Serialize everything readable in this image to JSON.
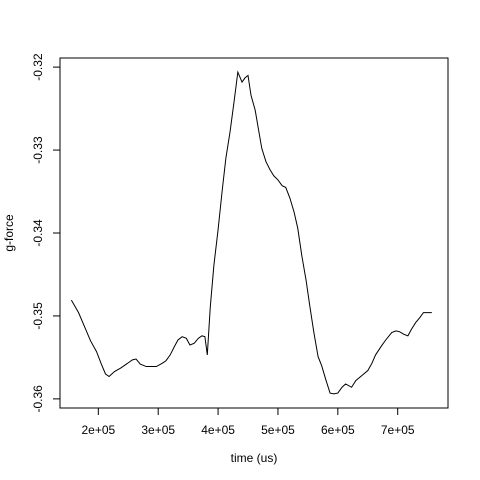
{
  "chart_data": {
    "type": "line",
    "xlabel": "time (us)",
    "ylabel": "g-force",
    "color": "#000000",
    "x": [
      155000,
      167000,
      177000,
      187000,
      197000,
      205000,
      212000,
      218000,
      227000,
      237000,
      247000,
      257000,
      263000,
      270000,
      280000,
      290000,
      297000,
      307000,
      313000,
      320000,
      327000,
      333000,
      340000,
      347000,
      353000,
      360000,
      367000,
      373000,
      378000,
      382000,
      387000,
      393000,
      400000,
      407000,
      413000,
      420000,
      427000,
      433000,
      440000,
      445000,
      450000,
      455000,
      462000,
      467000,
      473000,
      480000,
      487000,
      493000,
      500000,
      507000,
      513000,
      520000,
      527000,
      533000,
      540000,
      547000,
      553000,
      560000,
      567000,
      573000,
      580000,
      587000,
      593000,
      600000,
      607000,
      613000,
      623000,
      630000,
      640000,
      650000,
      657000,
      663000,
      673000,
      680000,
      690000,
      697000,
      703000,
      710000,
      717000,
      723000,
      730000,
      737000,
      743000,
      757000
    ],
    "values": [
      -0.3481,
      -0.3496,
      -0.3513,
      -0.353,
      -0.3543,
      -0.3558,
      -0.357,
      -0.3573,
      -0.3567,
      -0.3563,
      -0.3558,
      -0.3553,
      -0.3552,
      -0.3558,
      -0.3561,
      -0.3561,
      -0.3561,
      -0.3557,
      -0.3554,
      -0.3547,
      -0.3537,
      -0.3529,
      -0.3525,
      -0.3527,
      -0.3535,
      -0.3533,
      -0.3527,
      -0.3524,
      -0.3525,
      -0.3547,
      -0.3489,
      -0.3439,
      -0.3396,
      -0.3348,
      -0.331,
      -0.3278,
      -0.324,
      -0.3206,
      -0.3218,
      -0.3213,
      -0.321,
      -0.3234,
      -0.3252,
      -0.3273,
      -0.3298,
      -0.3314,
      -0.3324,
      -0.3331,
      -0.3336,
      -0.3343,
      -0.3345,
      -0.3358,
      -0.3375,
      -0.3394,
      -0.3428,
      -0.3457,
      -0.3487,
      -0.352,
      -0.3549,
      -0.356,
      -0.3577,
      -0.3593,
      -0.3594,
      -0.3593,
      -0.3586,
      -0.3582,
      -0.3586,
      -0.3578,
      -0.3572,
      -0.3566,
      -0.3557,
      -0.3547,
      -0.3536,
      -0.3529,
      -0.352,
      -0.3518,
      -0.3519,
      -0.3522,
      -0.3524,
      -0.3516,
      -0.3508,
      -0.3502,
      -0.3496,
      -0.3496
    ],
    "xlim": [
      136000,
      784000
    ],
    "xticks": [
      {
        "value": 200000,
        "label": "2e+05"
      },
      {
        "value": 300000,
        "label": "3e+05"
      },
      {
        "value": 400000,
        "label": "4e+05"
      },
      {
        "value": 500000,
        "label": "5e+05"
      },
      {
        "value": 600000,
        "label": "6e+05"
      },
      {
        "value": 700000,
        "label": "7e+05"
      }
    ],
    "ylim": [
      -0.3611,
      -0.3189
    ],
    "yticks": [
      -0.36,
      -0.35,
      -0.34,
      -0.33,
      -0.32
    ]
  }
}
